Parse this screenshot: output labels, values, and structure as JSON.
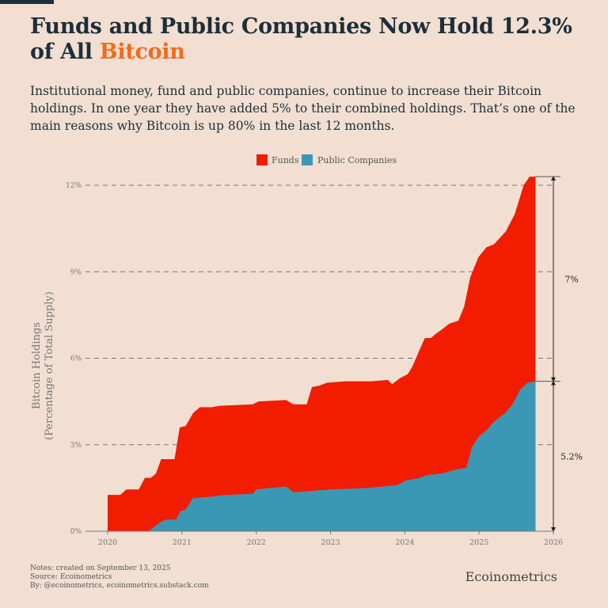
{
  "header": {
    "title_main": "Funds and Public Companies Now Hold 12.3% of All ",
    "title_highlight": "Bitcoin",
    "subtitle": "Institutional money, fund and public companies, continue to increase their Bitcoin holdings. In one year they have added 5% to their combined holdings. That’s one of the main reasons why Bitcoin is up 80% in the last 12 months."
  },
  "footer": {
    "notes": "Notes: created on September 13, 2025",
    "source": "Source: Ecoinometrics",
    "by": "By: @ecoinometrics, ecoinometrics.substack.com",
    "brand": "Ecoinometrics"
  },
  "colors": {
    "funds": "#f21c00",
    "public_companies": "#3b98b4",
    "accent": "#f26a1b",
    "background": "#f2dfd2"
  },
  "chart_data": {
    "type": "area",
    "stacked": true,
    "ylabel_line1": "Bitcoin Holdings",
    "ylabel_line2": "(Percentage of Total Supply)",
    "xlim": [
      2020,
      2026
    ],
    "ylim": [
      0,
      12
    ],
    "x_ticks": [
      "2020",
      "2021",
      "2022",
      "2023",
      "2024",
      "2025",
      "2026"
    ],
    "y_ticks": [
      "0%",
      "3%",
      "6%",
      "9%",
      "12%"
    ],
    "grid": "horizontal dashed",
    "legend_position": "top-center",
    "annotations": [
      {
        "label": "7%",
        "from": 5.2,
        "to": 12.3
      },
      {
        "label": "5.2%",
        "from": 0,
        "to": 5.2
      }
    ],
    "series": [
      {
        "name": "Public Companies",
        "points": [
          [
            2020.0,
            0
          ],
          [
            2020.55,
            0
          ],
          [
            2020.7,
            0.3
          ],
          [
            2020.78,
            0.4
          ],
          [
            2020.92,
            0.4
          ],
          [
            2020.98,
            0.7
          ],
          [
            2021.05,
            0.75
          ],
          [
            2021.15,
            1.15
          ],
          [
            2021.4,
            1.2
          ],
          [
            2021.55,
            1.25
          ],
          [
            2021.95,
            1.3
          ],
          [
            2022.0,
            1.45
          ],
          [
            2022.4,
            1.55
          ],
          [
            2022.5,
            1.35
          ],
          [
            2022.75,
            1.4
          ],
          [
            2023.0,
            1.45
          ],
          [
            2023.5,
            1.5
          ],
          [
            2023.9,
            1.6
          ],
          [
            2024.0,
            1.75
          ],
          [
            2024.2,
            1.85
          ],
          [
            2024.3,
            1.95
          ],
          [
            2024.5,
            2.0
          ],
          [
            2024.7,
            2.15
          ],
          [
            2024.83,
            2.2
          ],
          [
            2024.9,
            2.9
          ],
          [
            2025.0,
            3.3
          ],
          [
            2025.1,
            3.5
          ],
          [
            2025.2,
            3.8
          ],
          [
            2025.35,
            4.1
          ],
          [
            2025.45,
            4.4
          ],
          [
            2025.55,
            4.9
          ],
          [
            2025.65,
            5.15
          ],
          [
            2025.76,
            5.2
          ]
        ]
      },
      {
        "name": "Funds (stacked total)",
        "points": [
          [
            2020.0,
            1.26
          ],
          [
            2020.17,
            1.26
          ],
          [
            2020.25,
            1.45
          ],
          [
            2020.42,
            1.45
          ],
          [
            2020.5,
            1.85
          ],
          [
            2020.58,
            1.85
          ],
          [
            2020.65,
            2.0
          ],
          [
            2020.72,
            2.5
          ],
          [
            2020.9,
            2.5
          ],
          [
            2020.97,
            3.6
          ],
          [
            2021.05,
            3.65
          ],
          [
            2021.15,
            4.1
          ],
          [
            2021.24,
            4.3
          ],
          [
            2021.4,
            4.3
          ],
          [
            2021.5,
            4.35
          ],
          [
            2021.95,
            4.4
          ],
          [
            2022.03,
            4.5
          ],
          [
            2022.4,
            4.55
          ],
          [
            2022.5,
            4.4
          ],
          [
            2022.68,
            4.4
          ],
          [
            2022.75,
            5.0
          ],
          [
            2022.85,
            5.05
          ],
          [
            2022.95,
            5.15
          ],
          [
            2023.2,
            5.2
          ],
          [
            2023.55,
            5.2
          ],
          [
            2023.77,
            5.25
          ],
          [
            2023.83,
            5.1
          ],
          [
            2023.93,
            5.3
          ],
          [
            2024.04,
            5.45
          ],
          [
            2024.1,
            5.7
          ],
          [
            2024.2,
            6.3
          ],
          [
            2024.27,
            6.7
          ],
          [
            2024.35,
            6.7
          ],
          [
            2024.42,
            6.85
          ],
          [
            2024.5,
            7.0
          ],
          [
            2024.6,
            7.2
          ],
          [
            2024.72,
            7.3
          ],
          [
            2024.8,
            7.8
          ],
          [
            2024.88,
            8.8
          ],
          [
            2024.99,
            9.5
          ],
          [
            2025.1,
            9.85
          ],
          [
            2025.2,
            9.95
          ],
          [
            2025.36,
            10.4
          ],
          [
            2025.48,
            11.0
          ],
          [
            2025.6,
            12.0
          ],
          [
            2025.68,
            12.3
          ],
          [
            2025.76,
            12.3
          ]
        ]
      }
    ],
    "legend": [
      "Funds",
      "Public Companies"
    ]
  }
}
